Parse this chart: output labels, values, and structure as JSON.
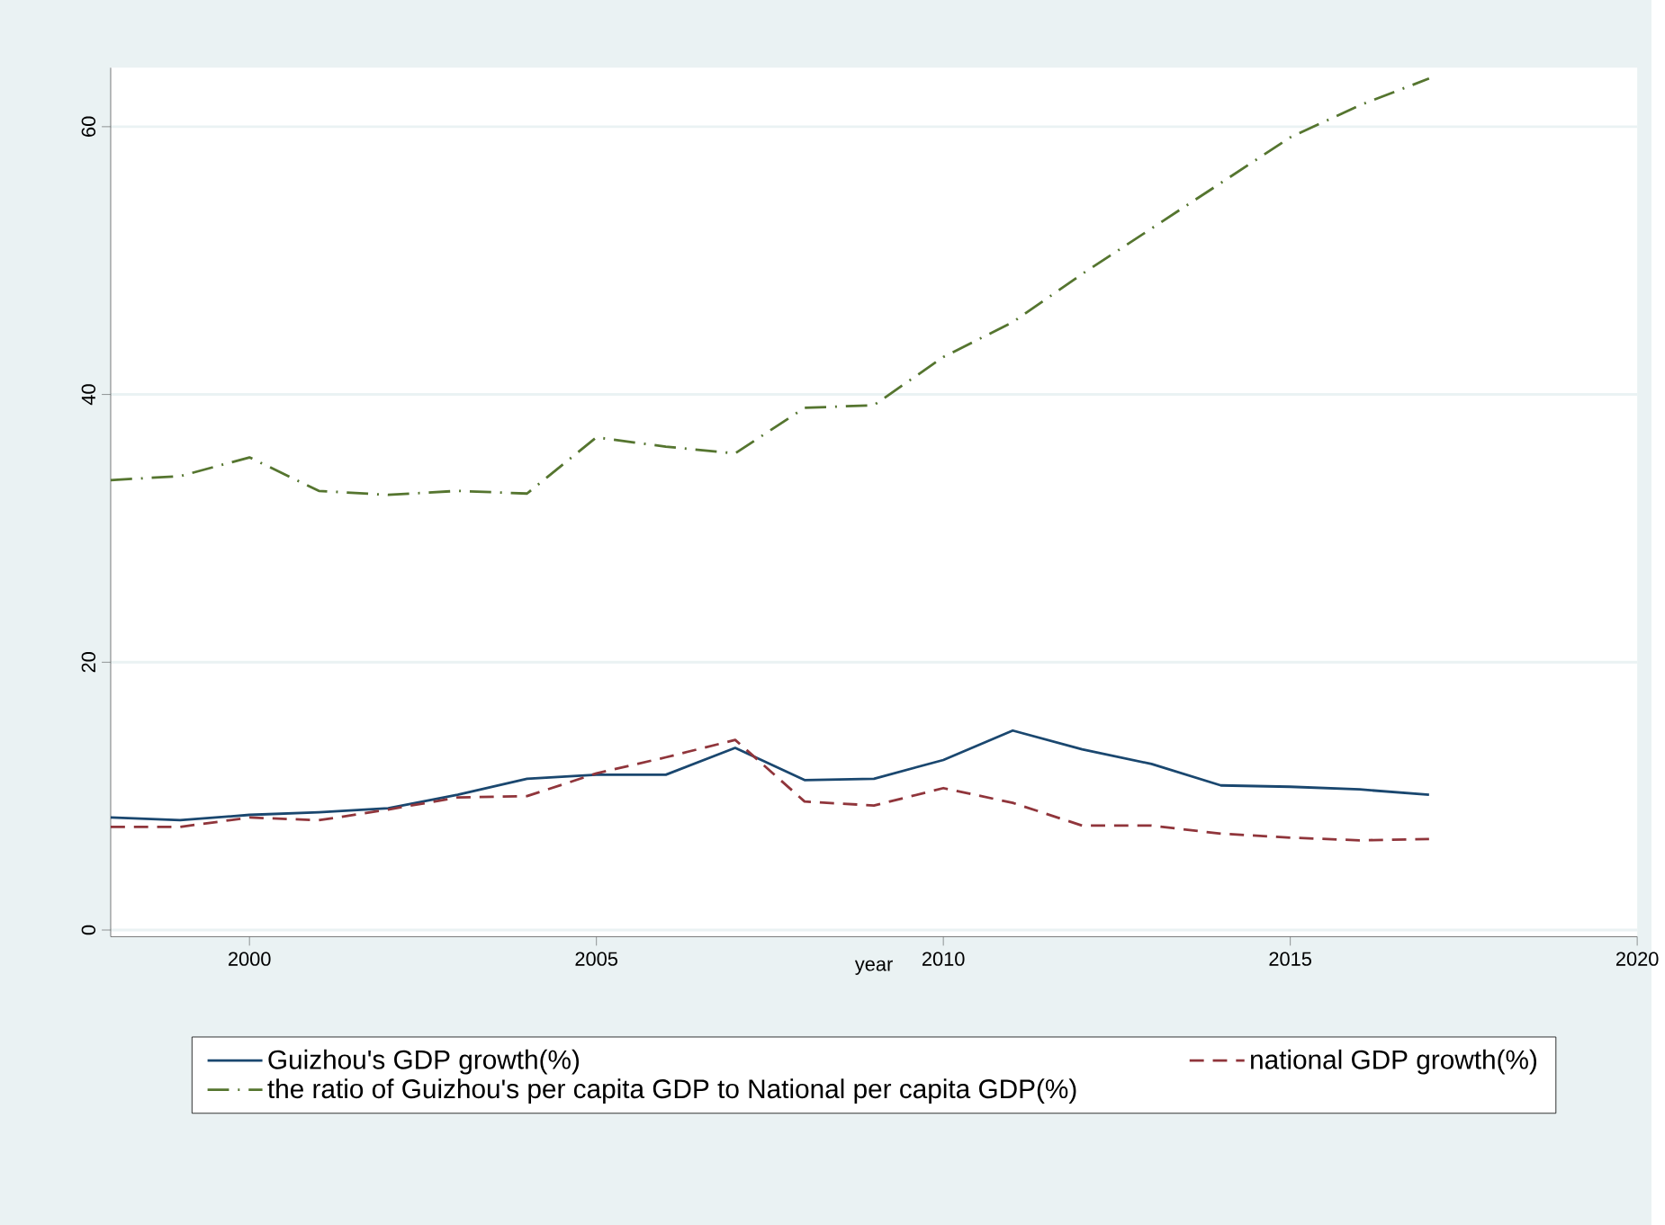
{
  "chart_data": {
    "type": "line",
    "xlabel": "year",
    "x": [
      1998,
      1999,
      2000,
      2001,
      2002,
      2003,
      2004,
      2005,
      2006,
      2007,
      2008,
      2009,
      2010,
      2011,
      2012,
      2013,
      2014,
      2015,
      2016,
      2017
    ],
    "xlim": [
      1998,
      2020
    ],
    "xticks": [
      2000,
      2005,
      2010,
      2015,
      2020
    ],
    "ylim": [
      -0.5,
      64.4
    ],
    "yticks": [
      0,
      20,
      40,
      60
    ],
    "grid": "y",
    "legend": "bottom",
    "series": [
      {
        "name": "Guizhou's GDP growth(%)",
        "color": "#1a476f",
        "line_style": "solid",
        "values": [
          8.4,
          8.2,
          8.6,
          8.8,
          9.1,
          10.1,
          11.3,
          11.6,
          11.6,
          13.6,
          11.2,
          11.3,
          12.7,
          14.9,
          13.5,
          12.4,
          10.8,
          10.7,
          10.5,
          10.1
        ]
      },
      {
        "name": "national GDP growth(%)",
        "color": "#90353b",
        "line_style": "dashed",
        "values": [
          7.7,
          7.7,
          8.4,
          8.2,
          9.0,
          9.9,
          10.0,
          11.7,
          12.9,
          14.2,
          9.6,
          9.3,
          10.6,
          9.5,
          7.8,
          7.8,
          7.2,
          6.9,
          6.7,
          6.8
        ]
      },
      {
        "name": "the ratio of Guizhou's per capita GDP to National per capita GDP(%)",
        "color": "#55752f",
        "line_style": "dashdot",
        "values": [
          33.6,
          33.9,
          35.3,
          32.8,
          32.5,
          32.8,
          32.6,
          36.8,
          36.1,
          35.6,
          39.0,
          39.2,
          42.8,
          45.4,
          49.0,
          52.4,
          55.8,
          59.2,
          61.6,
          63.6
        ]
      }
    ]
  }
}
